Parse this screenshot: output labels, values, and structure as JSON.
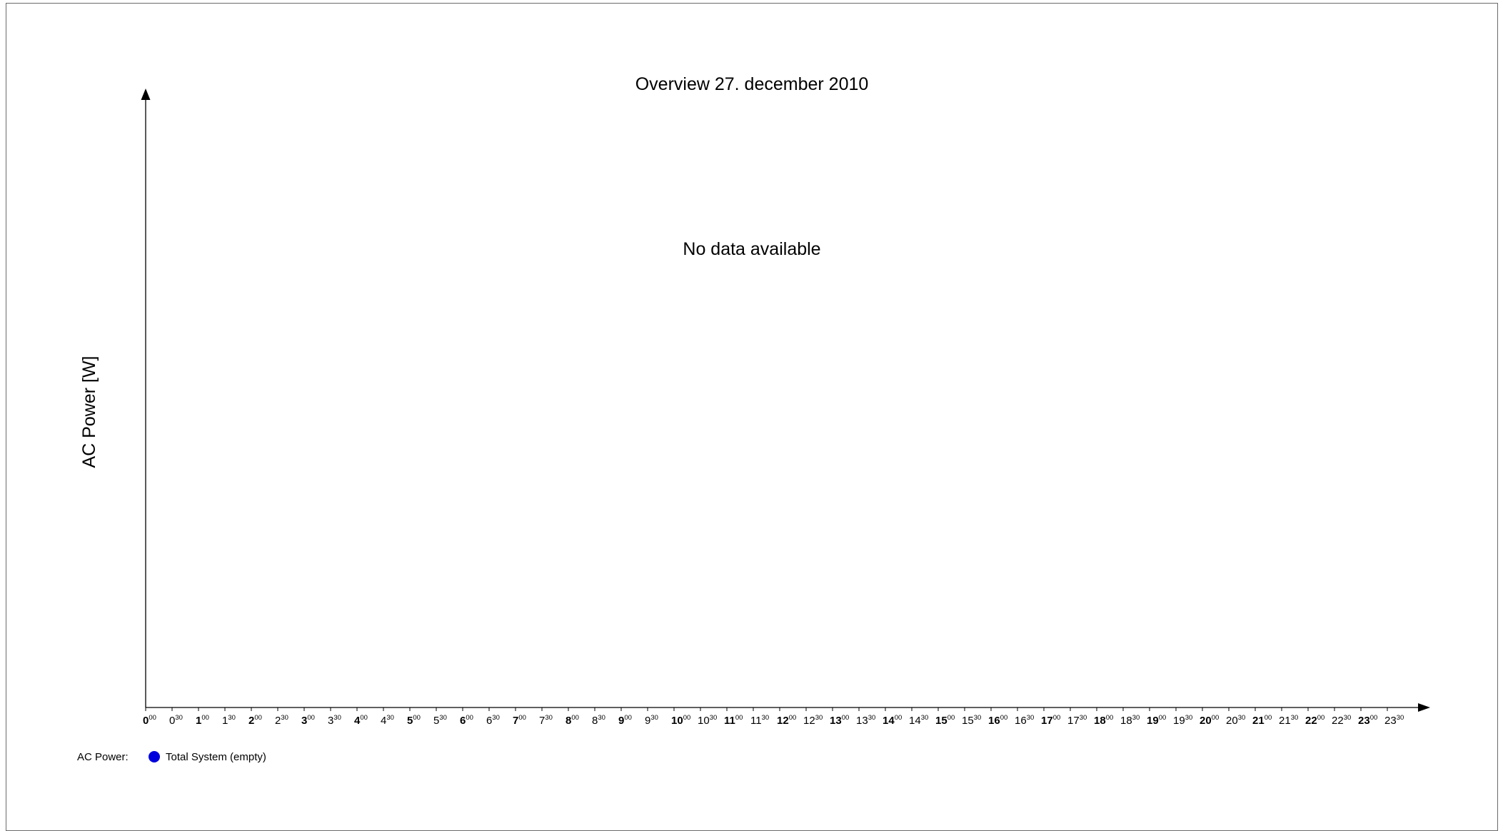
{
  "chart_data": {
    "type": "line",
    "title": "Overview 27. december 2010",
    "message": "No data available",
    "ylabel": "AC Power [W]",
    "xlabel": "",
    "x_ticks": [
      {
        "hour": "0",
        "minute": "00",
        "major": true
      },
      {
        "hour": "0",
        "minute": "30",
        "major": false
      },
      {
        "hour": "1",
        "minute": "00",
        "major": true
      },
      {
        "hour": "1",
        "minute": "30",
        "major": false
      },
      {
        "hour": "2",
        "minute": "00",
        "major": true
      },
      {
        "hour": "2",
        "minute": "30",
        "major": false
      },
      {
        "hour": "3",
        "minute": "00",
        "major": true
      },
      {
        "hour": "3",
        "minute": "30",
        "major": false
      },
      {
        "hour": "4",
        "minute": "00",
        "major": true
      },
      {
        "hour": "4",
        "minute": "30",
        "major": false
      },
      {
        "hour": "5",
        "minute": "00",
        "major": true
      },
      {
        "hour": "5",
        "minute": "30",
        "major": false
      },
      {
        "hour": "6",
        "minute": "00",
        "major": true
      },
      {
        "hour": "6",
        "minute": "30",
        "major": false
      },
      {
        "hour": "7",
        "minute": "00",
        "major": true
      },
      {
        "hour": "7",
        "minute": "30",
        "major": false
      },
      {
        "hour": "8",
        "minute": "00",
        "major": true
      },
      {
        "hour": "8",
        "minute": "30",
        "major": false
      },
      {
        "hour": "9",
        "minute": "00",
        "major": true
      },
      {
        "hour": "9",
        "minute": "30",
        "major": false
      },
      {
        "hour": "10",
        "minute": "00",
        "major": true
      },
      {
        "hour": "10",
        "minute": "30",
        "major": false
      },
      {
        "hour": "11",
        "minute": "00",
        "major": true
      },
      {
        "hour": "11",
        "minute": "30",
        "major": false
      },
      {
        "hour": "12",
        "minute": "00",
        "major": true
      },
      {
        "hour": "12",
        "minute": "30",
        "major": false
      },
      {
        "hour": "13",
        "minute": "00",
        "major": true
      },
      {
        "hour": "13",
        "minute": "30",
        "major": false
      },
      {
        "hour": "14",
        "minute": "00",
        "major": true
      },
      {
        "hour": "14",
        "minute": "30",
        "major": false
      },
      {
        "hour": "15",
        "minute": "00",
        "major": true
      },
      {
        "hour": "15",
        "minute": "30",
        "major": false
      },
      {
        "hour": "16",
        "minute": "00",
        "major": true
      },
      {
        "hour": "16",
        "minute": "30",
        "major": false
      },
      {
        "hour": "17",
        "minute": "00",
        "major": true
      },
      {
        "hour": "17",
        "minute": "30",
        "major": false
      },
      {
        "hour": "18",
        "minute": "00",
        "major": true
      },
      {
        "hour": "18",
        "minute": "30",
        "major": false
      },
      {
        "hour": "19",
        "minute": "00",
        "major": true
      },
      {
        "hour": "19",
        "minute": "30",
        "major": false
      },
      {
        "hour": "20",
        "minute": "00",
        "major": true
      },
      {
        "hour": "20",
        "minute": "30",
        "major": false
      },
      {
        "hour": "21",
        "minute": "00",
        "major": true
      },
      {
        "hour": "21",
        "minute": "30",
        "major": false
      },
      {
        "hour": "22",
        "minute": "00",
        "major": true
      },
      {
        "hour": "22",
        "minute": "30",
        "major": false
      },
      {
        "hour": "23",
        "minute": "00",
        "major": true
      },
      {
        "hour": "23",
        "minute": "30",
        "major": false
      }
    ],
    "series": [
      {
        "name": "Total System (empty)",
        "values": [],
        "color": "#0000dd"
      }
    ],
    "legend": {
      "prefix": "AC Power:",
      "placement": "bottom-left"
    },
    "grid": false
  }
}
